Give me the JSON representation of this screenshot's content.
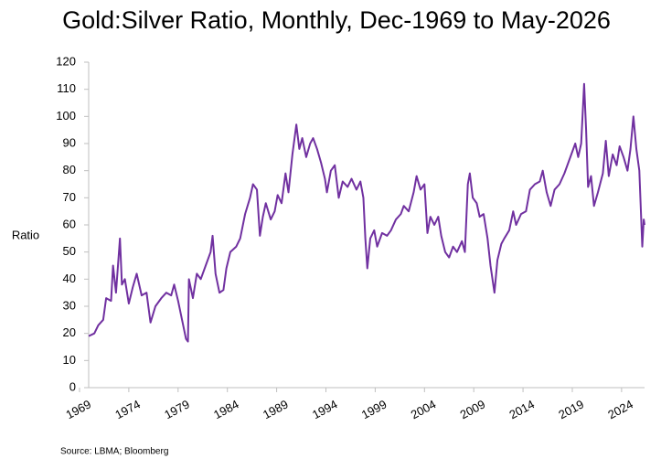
{
  "chart_data": {
    "type": "line",
    "title": "Gold:Silver Ratio, Monthly, Dec-1969 to May-2026",
    "y_label": "Ratio",
    "source": "Source: LBMA; Bloomberg",
    "xlim": [
      1969,
      2026.33
    ],
    "xticks": [
      1969,
      1974,
      1979,
      1984,
      1989,
      1994,
      1999,
      2004,
      2009,
      2014,
      2019,
      2024
    ],
    "ylim": [
      0,
      120
    ],
    "yticks": [
      0,
      10,
      20,
      30,
      40,
      50,
      60,
      70,
      80,
      90,
      100,
      110,
      120
    ],
    "grid": false,
    "x": [
      1969.93,
      1970.5,
      1970.9,
      1971.4,
      1971.7,
      1972.2,
      1972.4,
      1972.7,
      1973.1,
      1973.3,
      1973.6,
      1974.0,
      1974.4,
      1974.8,
      1975.3,
      1975.8,
      1976.2,
      1976.7,
      1977.3,
      1977.8,
      1978.3,
      1978.6,
      1979.0,
      1979.4,
      1979.8,
      1980.0,
      1980.1,
      1980.5,
      1980.9,
      1981.3,
      1981.8,
      1982.3,
      1982.5,
      1982.8,
      1983.2,
      1983.6,
      1983.9,
      1984.3,
      1984.9,
      1985.3,
      1985.8,
      1986.3,
      1986.6,
      1987.0,
      1987.3,
      1987.6,
      1987.9,
      1988.4,
      1988.8,
      1989.1,
      1989.5,
      1989.9,
      1990.2,
      1990.6,
      1991.0,
      1991.3,
      1991.6,
      1992.0,
      1992.4,
      1992.7,
      1993.1,
      1993.5,
      1993.9,
      1994.1,
      1994.5,
      1994.9,
      1995.3,
      1995.7,
      1996.2,
      1996.6,
      1997.1,
      1997.5,
      1997.8,
      1998.0,
      1998.2,
      1998.5,
      1998.9,
      1999.2,
      1999.7,
      2000.2,
      2000.6,
      2001.1,
      2001.6,
      2001.9,
      2002.4,
      2002.9,
      2003.2,
      2003.6,
      2004.0,
      2004.3,
      2004.6,
      2005.0,
      2005.4,
      2005.7,
      2006.1,
      2006.5,
      2006.9,
      2007.3,
      2007.8,
      2008.1,
      2008.4,
      2008.6,
      2008.9,
      2009.3,
      2009.6,
      2010.0,
      2010.4,
      2010.7,
      2011.1,
      2011.4,
      2011.8,
      2012.1,
      2012.6,
      2013.0,
      2013.3,
      2013.8,
      2014.3,
      2014.7,
      2015.2,
      2015.7,
      2016.0,
      2016.4,
      2016.8,
      2017.2,
      2017.7,
      2018.2,
      2018.5,
      2018.9,
      2019.3,
      2019.6,
      2019.9,
      2020.2,
      2020.4,
      2020.6,
      2020.9,
      2021.2,
      2021.6,
      2022.1,
      2022.4,
      2022.7,
      2023.1,
      2023.5,
      2023.8,
      2024.2,
      2024.6,
      2024.9,
      2025.2,
      2025.5,
      2025.8,
      2026.1,
      2026.25,
      2026.33
    ],
    "series": [
      {
        "name": "Gold:Silver Ratio",
        "color": "#7030a0",
        "values": [
          19,
          20,
          23,
          25,
          33,
          32,
          45,
          35,
          55,
          38,
          40,
          31,
          37,
          42,
          34,
          35,
          24,
          30,
          33,
          35,
          34,
          38,
          32,
          25,
          18,
          17,
          40,
          33,
          42,
          40,
          45,
          50,
          56,
          42,
          35,
          36,
          44,
          50,
          52,
          55,
          64,
          70,
          75,
          73,
          56,
          63,
          68,
          62,
          65,
          71,
          68,
          79,
          72,
          86,
          97,
          88,
          92,
          85,
          90,
          92,
          88,
          83,
          77,
          72,
          80,
          82,
          70,
          76,
          74,
          77,
          73,
          76,
          70,
          55,
          44,
          55,
          58,
          52,
          57,
          56,
          58,
          62,
          64,
          67,
          65,
          72,
          78,
          73,
          75,
          57,
          63,
          60,
          63,
          56,
          50,
          48,
          52,
          50,
          54,
          50,
          75,
          79,
          70,
          68,
          63,
          64,
          55,
          45,
          35,
          47,
          53,
          55,
          58,
          65,
          60,
          64,
          65,
          73,
          75,
          76,
          80,
          72,
          67,
          73,
          75,
          79,
          82,
          86,
          90,
          85,
          90,
          112,
          95,
          74,
          78,
          67,
          72,
          79,
          91,
          78,
          86,
          82,
          89,
          85,
          80,
          88,
          100,
          88,
          80,
          52,
          62,
          60
        ]
      }
    ]
  }
}
